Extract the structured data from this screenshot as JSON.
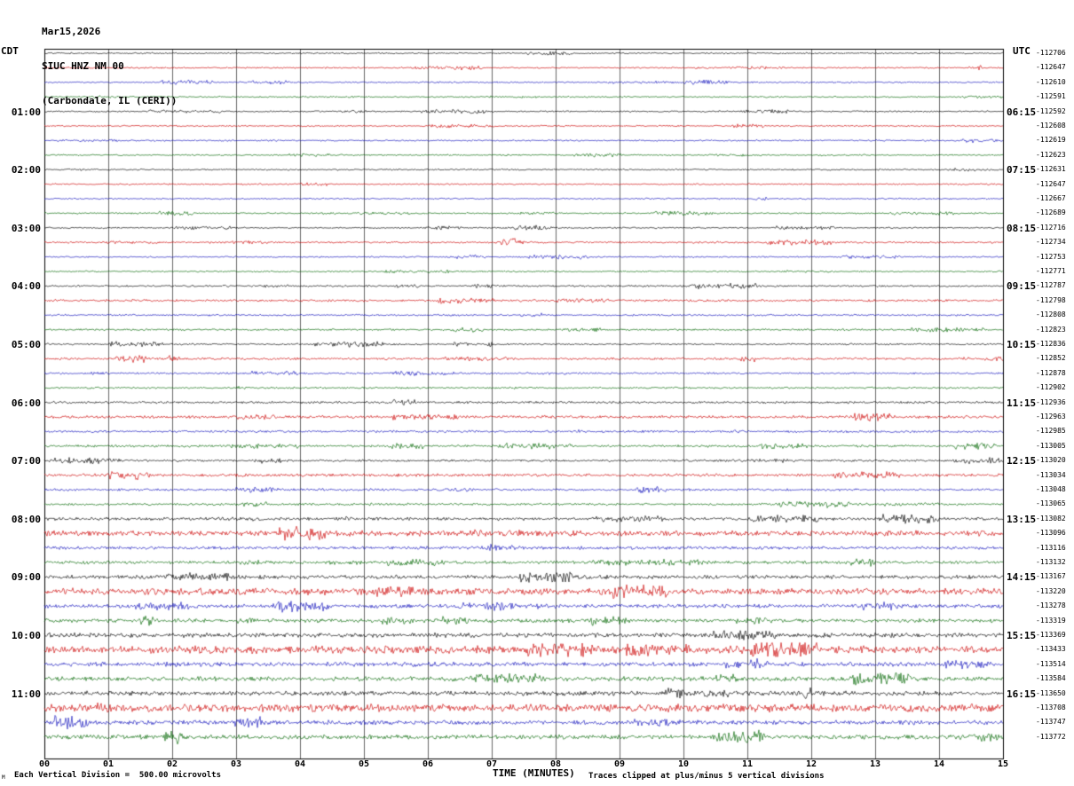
{
  "chart_data": {
    "type": "seismogram",
    "date": "Mar15,2026",
    "station": "SIUC HNZ NM 00",
    "location": "(Carbondale, IL (CERI))",
    "left_axis_label": "CDT",
    "right_axis_label": "UTC",
    "x_axis": {
      "label": "TIME (MINUTES)",
      "ticks": [
        "00",
        "01",
        "02",
        "03",
        "04",
        "05",
        "06",
        "07",
        "08",
        "09",
        "10",
        "11",
        "12",
        "13",
        "14",
        "15"
      ],
      "range_minutes": [
        0,
        15
      ]
    },
    "rows": 48,
    "minutes_per_row": 15,
    "trace_color_cycle": [
      "#000000",
      "#cc0000",
      "#1111bb",
      "#006600"
    ],
    "left_time_labels": [
      {
        "row": 4,
        "label": "01:00"
      },
      {
        "row": 8,
        "label": "02:00"
      },
      {
        "row": 12,
        "label": "03:00"
      },
      {
        "row": 16,
        "label": "04:00"
      },
      {
        "row": 20,
        "label": "05:00"
      },
      {
        "row": 24,
        "label": "06:00"
      },
      {
        "row": 28,
        "label": "07:00"
      },
      {
        "row": 32,
        "label": "08:00"
      },
      {
        "row": 36,
        "label": "09:00"
      },
      {
        "row": 40,
        "label": "10:00"
      },
      {
        "row": 44,
        "label": "11:00"
      }
    ],
    "right_time_labels": [
      {
        "row": 4,
        "label": "06:15"
      },
      {
        "row": 8,
        "label": "07:15"
      },
      {
        "row": 12,
        "label": "08:15"
      },
      {
        "row": 16,
        "label": "09:15"
      },
      {
        "row": 20,
        "label": "10:15"
      },
      {
        "row": 24,
        "label": "11:15"
      },
      {
        "row": 28,
        "label": "12:15"
      },
      {
        "row": 32,
        "label": "13:15"
      },
      {
        "row": 36,
        "label": "14:15"
      },
      {
        "row": 40,
        "label": "15:15"
      },
      {
        "row": 44,
        "label": "16:15"
      }
    ],
    "trace_offsets": [
      "-112706",
      "-112647",
      "-112610",
      "-112591",
      "-112592",
      "-112608",
      "-112619",
      "-112623",
      "-112631",
      "-112647",
      "-112667",
      "-112689",
      "-112716",
      "-112734",
      "-112753",
      "-112771",
      "-112787",
      "-112798",
      "-112808",
      "-112823",
      "-112836",
      "-112852",
      "-112878",
      "-112902",
      "-112936",
      "-112963",
      "-112985",
      "-113005",
      "-113020",
      "-113034",
      "-113048",
      "-113065",
      "-113082",
      "-113096",
      "-113116",
      "-113132",
      "-113167",
      "-113220",
      "-113278",
      "-113319",
      "-113369",
      "-113433",
      "-113514",
      "-113584",
      "-113650",
      "-113708",
      "-113747",
      "-113772"
    ],
    "events": [
      {
        "row": 13,
        "minute": 7.3,
        "amplitude": 5,
        "width_minutes": 0.12
      },
      {
        "row": 22,
        "minute": 5.75,
        "amplitude": 2.5,
        "width_minutes": 0.3
      },
      {
        "row": 38,
        "minute": 7.0,
        "amplitude": 3.5,
        "width_minutes": 0.5
      },
      {
        "row": 41,
        "minute": 8.3,
        "amplitude": 4.5,
        "width_minutes": 0.25
      }
    ],
    "footer": {
      "scale": "Each Vertical Division =  500.00 microvolts",
      "clip": "Traces clipped at plus/minus 5 vertical divisions",
      "corner_mark": "M"
    }
  }
}
